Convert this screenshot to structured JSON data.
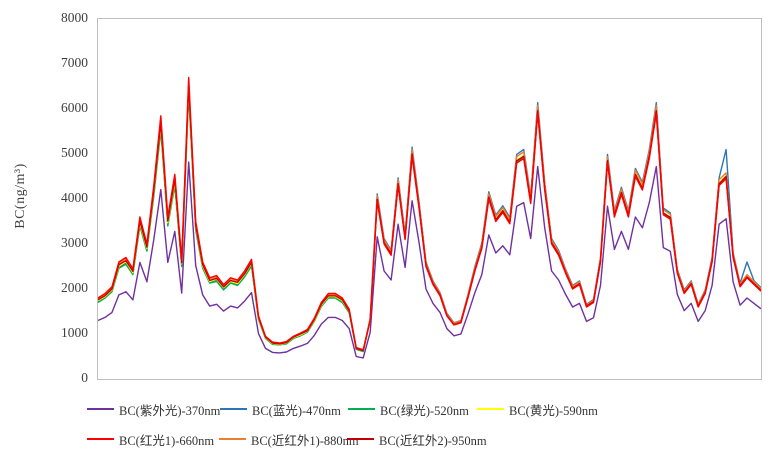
{
  "y_axis_title": "BC(ng/m³)",
  "chart_data": {
    "type": "line",
    "title": "",
    "xlabel": "",
    "ylabel": "BC(ng/m³)",
    "ylim": [
      0,
      8000
    ],
    "ytick_step": 1000,
    "ytick_labels": [
      "0",
      "1000",
      "2000",
      "3000",
      "4000",
      "5000",
      "6000",
      "7000",
      "8000"
    ],
    "grid": false,
    "x_axis_labels_visible": false,
    "point_count": 96,
    "legend_position": "bottom",
    "plot_border_color": "#bfbfbf",
    "series": [
      {
        "name": "BC(紫外光)-370nm",
        "wavelength": "370nm",
        "color": "#7030A0",
        "values": [
          1300,
          1370,
          1480,
          1870,
          1940,
          1760,
          2590,
          2160,
          3100,
          4210,
          2590,
          3280,
          1910,
          4820,
          2520,
          1870,
          1620,
          1660,
          1510,
          1620,
          1580,
          1730,
          1920,
          1010,
          680,
          590,
          580,
          600,
          680,
          730,
          790,
          970,
          1220,
          1370,
          1370,
          1300,
          1120,
          500,
          470,
          1040,
          3160,
          2400,
          2200,
          3440,
          2480,
          3960,
          3040,
          2000,
          1680,
          1480,
          1120,
          960,
          1000,
          1440,
          1920,
          2320,
          3200,
          2800,
          2960,
          2760,
          3840,
          3920,
          3120,
          4720,
          3360,
          2400,
          2200,
          1880,
          1600,
          1680,
          1280,
          1360,
          2080,
          3840,
          2880,
          3280,
          2880,
          3600,
          3360,
          3920,
          4720,
          2920,
          2840,
          1880,
          1520,
          1680,
          1280,
          1520,
          2080,
          3440,
          3560,
          2160,
          1640,
          1800,
          1680,
          1560
        ]
      },
      {
        "name": "BC(蓝光)-470nm",
        "wavelength": "470nm",
        "color": "#2E75B6",
        "values": [
          1720,
          1810,
          1960,
          2480,
          2580,
          2340,
          3440,
          2870,
          4110,
          5590,
          3440,
          4350,
          2530,
          6400,
          3340,
          2480,
          2150,
          2200,
          2010,
          2150,
          2100,
          2290,
          2540,
          1340,
          910,
          780,
          760,
          790,
          910,
          970,
          1050,
          1290,
          1620,
          1810,
          1810,
          1720,
          1480,
          670,
          620,
          1350,
          4110,
          3120,
          2860,
          4470,
          3220,
          5150,
          3950,
          2600,
          2180,
          1920,
          1460,
          1250,
          1300,
          1870,
          2500,
          3020,
          4160,
          3640,
          3850,
          3590,
          4990,
          5100,
          4060,
          6140,
          4370,
          3120,
          2860,
          2440,
          2080,
          2180,
          1660,
          1770,
          2700,
          4990,
          3740,
          4260,
          3740,
          4680,
          4370,
          5100,
          6140,
          3800,
          3690,
          2440,
          1980,
          2180,
          1660,
          1980,
          2700,
          4470,
          5100,
          2810,
          2130,
          2600,
          2180,
          2030
        ]
      },
      {
        "name": "BC(绿光)-520nm",
        "wavelength": "520nm",
        "color": "#00B050",
        "values": [
          1700,
          1800,
          1940,
          2460,
          2550,
          2320,
          3400,
          2840,
          4060,
          5530,
          3400,
          4300,
          2500,
          6330,
          3310,
          2460,
          2130,
          2170,
          1980,
          2130,
          2080,
          2270,
          2510,
          1320,
          900,
          770,
          760,
          780,
          900,
          960,
          1040,
          1280,
          1610,
          1800,
          1800,
          1700,
          1470,
          660,
          610,
          1310,
          3970,
          3020,
          2760,
          4320,
          3120,
          4970,
          3820,
          2510,
          2110,
          1860,
          1410,
          1210,
          1260,
          1810,
          2410,
          2910,
          4020,
          3520,
          3720,
          3470,
          4820,
          4920,
          3920,
          5930,
          4220,
          3020,
          2760,
          2360,
          2010,
          2110,
          1610,
          1710,
          2610,
          4820,
          3620,
          4120,
          3620,
          4520,
          4220,
          4920,
          5930,
          3670,
          3570,
          2360,
          1910,
          2110,
          1610,
          1910,
          2610,
          4320,
          4470,
          2710,
          2060,
          2260,
          2110,
          1960
        ]
      },
      {
        "name": "BC(黄光)-590nm",
        "wavelength": "590nm",
        "color": "#FFFF00",
        "values": [
          1740,
          1830,
          1980,
          2510,
          2610,
          2360,
          3470,
          2900,
          4150,
          5650,
          3470,
          4390,
          2560,
          6470,
          3380,
          2510,
          2170,
          2220,
          2030,
          2170,
          2120,
          2320,
          2570,
          1350,
          920,
          790,
          770,
          800,
          920,
          980,
          1060,
          1300,
          1640,
          1830,
          1830,
          1740,
          1500,
          680,
          630,
          1320,
          4010,
          3050,
          2790,
          4360,
          3150,
          5020,
          3860,
          2540,
          2130,
          1880,
          1420,
          1220,
          1270,
          1830,
          2440,
          2940,
          4060,
          3550,
          3760,
          3500,
          4870,
          4970,
          3960,
          5990,
          4260,
          3050,
          2790,
          2390,
          2030,
          2130,
          1620,
          1730,
          2640,
          4870,
          3650,
          4160,
          3650,
          4570,
          4260,
          4970,
          5990,
          3700,
          3600,
          2390,
          1930,
          2130,
          1620,
          1930,
          2640,
          4360,
          4520,
          2740,
          2080,
          2280,
          2130,
          1980
        ]
      },
      {
        "name": "BC(红光1)-660nm",
        "wavelength": "660nm",
        "color": "#FF0000",
        "values": [
          1800,
          1900,
          2050,
          2600,
          2700,
          2450,
          3600,
          3000,
          4300,
          5850,
          3600,
          4550,
          2650,
          6700,
          3500,
          2600,
          2250,
          2300,
          2100,
          2250,
          2200,
          2400,
          2660,
          1400,
          950,
          820,
          800,
          830,
          950,
          1020,
          1100,
          1350,
          1700,
          1900,
          1900,
          1800,
          1550,
          700,
          650,
          1300,
          3950,
          3000,
          2750,
          4300,
          3100,
          4950,
          3800,
          2500,
          2100,
          1850,
          1400,
          1200,
          1250,
          1800,
          2400,
          2900,
          4000,
          3500,
          3700,
          3450,
          4800,
          4900,
          3900,
          5900,
          4200,
          3000,
          2750,
          2350,
          2000,
          2100,
          1600,
          1700,
          2600,
          4800,
          3600,
          4100,
          3600,
          4500,
          4200,
          4900,
          5900,
          3650,
          3550,
          2350,
          1900,
          2100,
          1600,
          1900,
          2600,
          4300,
          4450,
          2700,
          2050,
          2250,
          2100,
          1950
        ]
      },
      {
        "name": "BC(近红外1)-880nm",
        "wavelength": "880nm",
        "color": "#ED7D31",
        "values": [
          1780,
          1880,
          2030,
          2570,
          2670,
          2430,
          3560,
          2970,
          4260,
          5790,
          3560,
          4500,
          2620,
          6630,
          3470,
          2570,
          2230,
          2280,
          2080,
          2230,
          2180,
          2380,
          2630,
          1390,
          940,
          810,
          790,
          820,
          940,
          1010,
          1090,
          1340,
          1680,
          1880,
          1880,
          1780,
          1530,
          690,
          640,
          1340,
          4070,
          3090,
          2830,
          4430,
          3190,
          5100,
          3910,
          2580,
          2160,
          1910,
          1440,
          1240,
          1290,
          1850,
          2470,
          2990,
          4120,
          3610,
          3810,
          3550,
          4940,
          5050,
          4020,
          6080,
          4330,
          3090,
          2830,
          2420,
          2060,
          2160,
          1650,
          1750,
          2680,
          4940,
          3710,
          4220,
          3710,
          4640,
          4330,
          5050,
          6080,
          3760,
          3660,
          2420,
          1960,
          2160,
          1650,
          1960,
          2680,
          4430,
          4580,
          2780,
          2110,
          2320,
          2160,
          2010
        ]
      },
      {
        "name": "BC(近红外2)-950nm",
        "wavelength": "950nm",
        "color": "#C00000",
        "values": [
          1760,
          1850,
          2000,
          2540,
          2630,
          2390,
          3510,
          2930,
          4190,
          5700,
          3510,
          4440,
          2580,
          6530,
          3410,
          2540,
          2190,
          2240,
          2050,
          2190,
          2150,
          2340,
          2590,
          1370,
          930,
          800,
          780,
          810,
          930,
          1000,
          1070,
          1320,
          1660,
          1850,
          1850,
          1760,
          1510,
          680,
          630,
          1310,
          3990,
          3030,
          2780,
          4340,
          3130,
          5000,
          3840,
          2530,
          2120,
          1870,
          1410,
          1210,
          1260,
          1820,
          2420,
          2930,
          4040,
          3540,
          3740,
          3480,
          4850,
          4950,
          3940,
          5960,
          4240,
          3030,
          2780,
          2370,
          2020,
          2120,
          1620,
          1720,
          2630,
          4850,
          3640,
          4140,
          3640,
          4550,
          4240,
          4950,
          5960,
          3690,
          3590,
          2370,
          1920,
          2120,
          1620,
          1920,
          2630,
          4340,
          4500,
          2730,
          2070,
          2270,
          2120,
          1970
        ]
      }
    ]
  }
}
